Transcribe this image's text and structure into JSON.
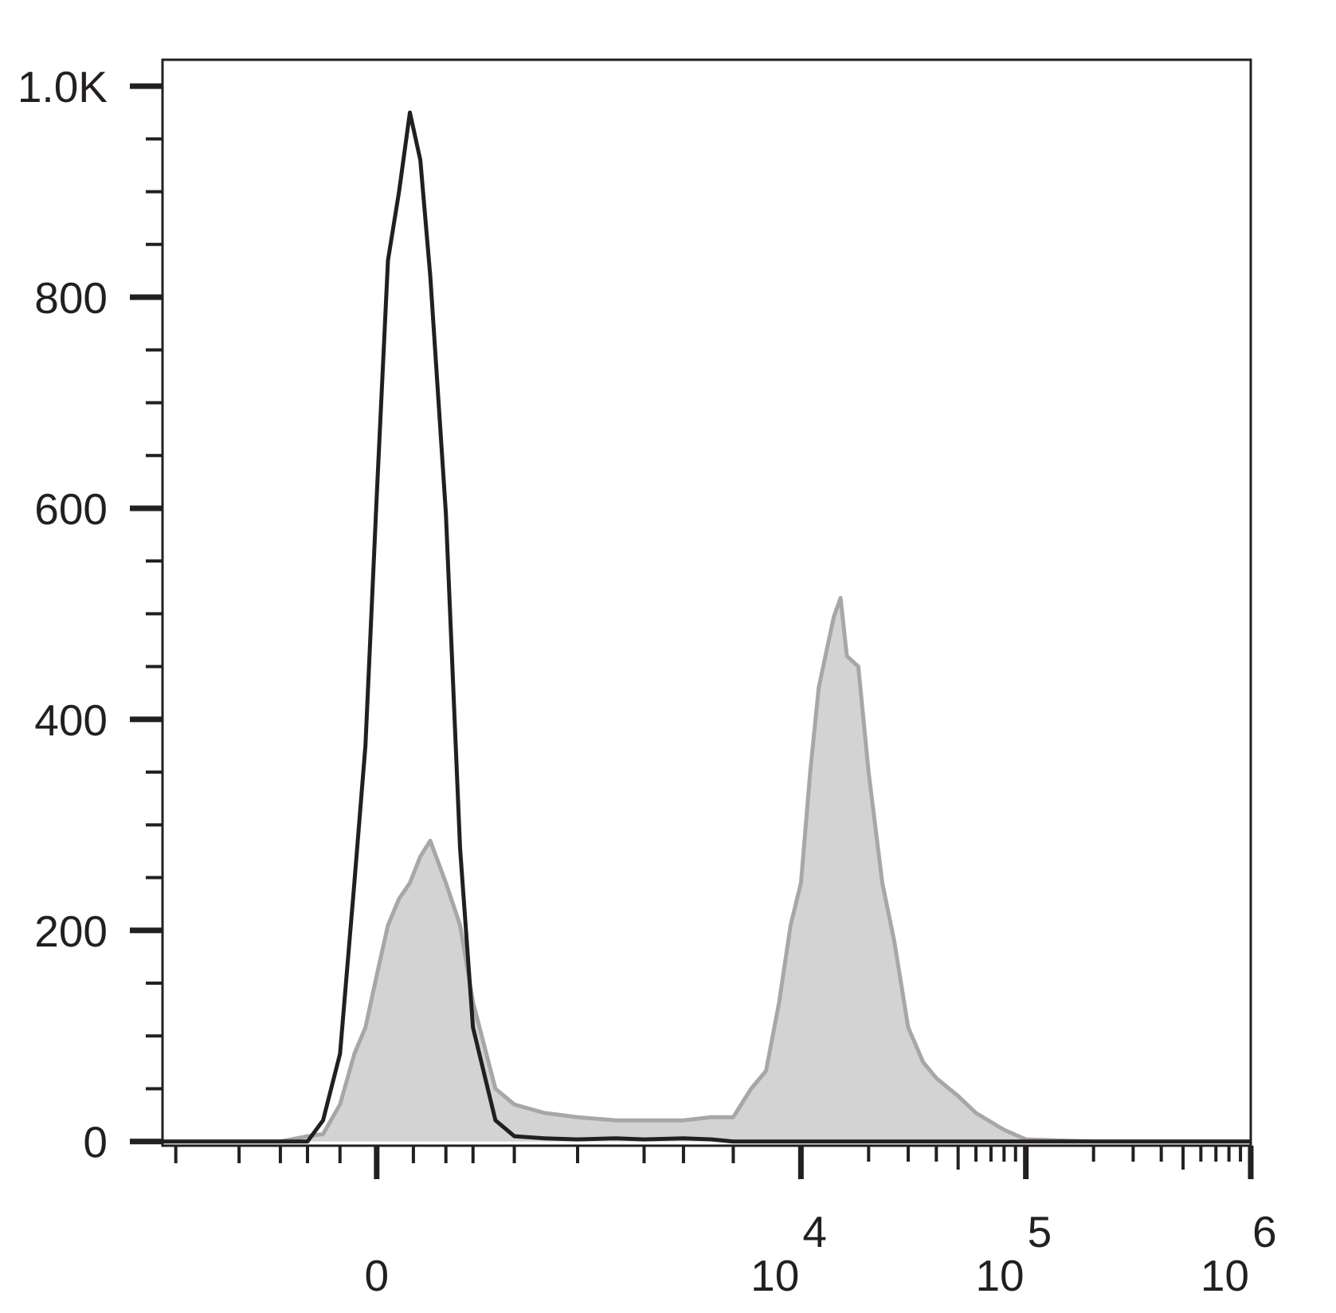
{
  "chart_data": {
    "type": "histogram-overlay",
    "xscale": "biexponential",
    "x": [
      -1150,
      -600,
      -300,
      -200,
      -150,
      -100,
      -60,
      -30,
      0,
      30,
      60,
      90,
      120,
      150,
      200,
      250,
      300,
      400,
      500,
      700,
      1000,
      1500,
      2000,
      3000,
      4000,
      5000,
      6000,
      7000,
      8000,
      9000,
      10000,
      11000,
      12000,
      13000,
      14000,
      15000,
      16000,
      18000,
      20000,
      23000,
      26000,
      30000,
      35000,
      40000,
      50000,
      60000,
      80000,
      100000,
      200000,
      1000000
    ],
    "series": [
      {
        "color": "#a7a7a9",
        "fill": "#d3d3d4",
        "values": [
          0,
          0,
          0,
          5,
          7,
          35,
          83,
          108,
          157,
          205,
          230,
          245,
          270,
          285,
          245,
          205,
          132,
          50,
          35,
          27,
          23,
          20,
          20,
          20,
          23,
          23,
          50,
          67,
          132,
          205,
          245,
          350,
          430,
          465,
          497,
          515,
          460,
          450,
          350,
          245,
          190,
          108,
          75,
          60,
          43,
          27,
          11,
          2,
          0,
          0
        ]
      },
      {
        "color": "#231f20",
        "values": [
          0,
          0,
          0,
          0,
          20,
          83,
          245,
          375,
          610,
          835,
          900,
          975,
          930,
          820,
          595,
          278,
          108,
          20,
          5,
          3,
          2,
          3,
          2,
          3,
          2,
          0,
          0,
          0,
          0,
          0,
          0,
          0,
          0,
          0,
          0,
          0,
          0,
          0,
          0,
          0,
          0,
          0,
          0,
          0,
          0,
          0,
          0,
          0,
          0,
          0
        ]
      }
    ],
    "xlim": [
      -1150,
      1000000
    ],
    "xticks": [
      0,
      {
        "value": 10000,
        "label": "10",
        "sup": "4"
      },
      {
        "value": 100000,
        "label": "10",
        "sup": "5"
      },
      {
        "value": 1000000,
        "label": "10",
        "sup": "6"
      }
    ],
    "ylim": [
      -4,
      1025
    ],
    "yticks": [
      0,
      200,
      400,
      600,
      800,
      {
        "value": 1000,
        "label": "1.0K"
      }
    ]
  }
}
